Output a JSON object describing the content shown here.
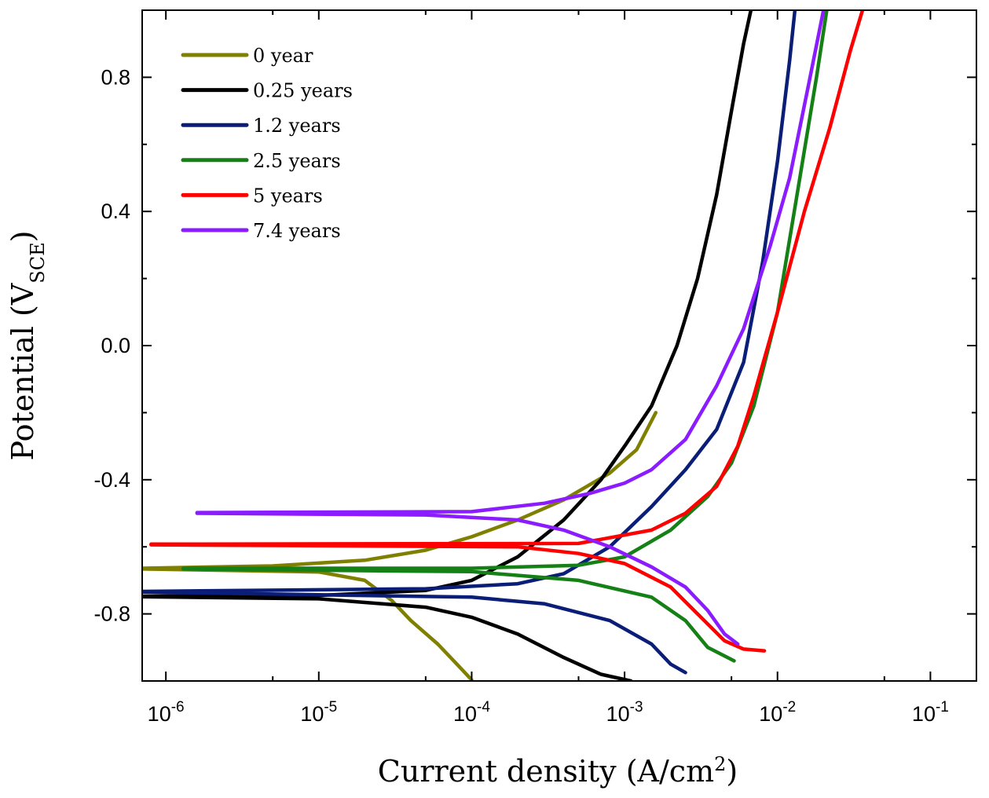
{
  "chart_data": {
    "type": "line",
    "title": "",
    "xlabel": "Current density (A/cm",
    "xlabel_sup": "2",
    "xlabel_end": ")",
    "ylabel": "Potential (V",
    "ylabel_sub": "SCE",
    "ylabel_end": ")",
    "xscale": "log",
    "xlim": [
      7e-07,
      0.2
    ],
    "ylim": [
      -1.0,
      1.0
    ],
    "x_ticks": [
      {
        "value": 1e-06,
        "base": "10",
        "exp": "-6"
      },
      {
        "value": 1e-05,
        "base": "10",
        "exp": "-5"
      },
      {
        "value": 0.0001,
        "base": "10",
        "exp": "-4"
      },
      {
        "value": 0.001,
        "base": "10",
        "exp": "-3"
      },
      {
        "value": 0.01,
        "base": "10",
        "exp": "-2"
      },
      {
        "value": 0.1,
        "base": "10",
        "exp": "-1"
      }
    ],
    "y_ticks": [
      {
        "value": 0.8,
        "label": "0.8"
      },
      {
        "value": 0.4,
        "label": "0.4"
      },
      {
        "value": 0.0,
        "label": "0.0"
      },
      {
        "value": -0.4,
        "label": "-0.4"
      },
      {
        "value": -0.8,
        "label": "-0.8"
      }
    ],
    "grid": false,
    "legend_position": "top-left",
    "series": [
      {
        "name": "0 year",
        "color": "#808000",
        "anodic": [
          [
            7e-07,
            -0.664
          ],
          [
            5e-06,
            -0.657
          ],
          [
            2e-05,
            -0.64
          ],
          [
            5e-05,
            -0.61
          ],
          [
            0.0001,
            -0.57
          ],
          [
            0.0002,
            -0.52
          ],
          [
            0.0004,
            -0.46
          ],
          [
            0.0008,
            -0.38
          ],
          [
            0.0012,
            -0.31
          ],
          [
            0.0016,
            -0.2
          ]
        ],
        "cathodic": [
          [
            7e-07,
            -0.666
          ],
          [
            1e-05,
            -0.675
          ],
          [
            2e-05,
            -0.7
          ],
          [
            3e-05,
            -0.76
          ],
          [
            4e-05,
            -0.82
          ],
          [
            6e-05,
            -0.89
          ],
          [
            8e-05,
            -0.95
          ],
          [
            0.0001,
            -0.997
          ]
        ]
      },
      {
        "name": "0.25 years",
        "color": "#000000",
        "anodic": [
          [
            7e-07,
            -0.747
          ],
          [
            1e-05,
            -0.745
          ],
          [
            5e-05,
            -0.73
          ],
          [
            0.0001,
            -0.7
          ],
          [
            0.0002,
            -0.63
          ],
          [
            0.0004,
            -0.52
          ],
          [
            0.0007,
            -0.4
          ],
          [
            0.001,
            -0.3
          ],
          [
            0.0015,
            -0.18
          ],
          [
            0.0022,
            0.0
          ],
          [
            0.003,
            0.2
          ],
          [
            0.004,
            0.45
          ],
          [
            0.005,
            0.7
          ],
          [
            0.006,
            0.9
          ],
          [
            0.0067,
            1.0
          ]
        ],
        "cathodic": [
          [
            7e-07,
            -0.749
          ],
          [
            1e-05,
            -0.755
          ],
          [
            5e-05,
            -0.78
          ],
          [
            0.0001,
            -0.81
          ],
          [
            0.0002,
            -0.86
          ],
          [
            0.0004,
            -0.93
          ],
          [
            0.0007,
            -0.98
          ],
          [
            0.0011,
            -1.0
          ]
        ]
      },
      {
        "name": "1.2 years",
        "color": "#0a1e78",
        "anodic": [
          [
            7e-07,
            -0.733
          ],
          [
            5e-05,
            -0.725
          ],
          [
            0.0002,
            -0.71
          ],
          [
            0.0004,
            -0.68
          ],
          [
            0.0008,
            -0.6
          ],
          [
            0.0015,
            -0.48
          ],
          [
            0.0025,
            -0.37
          ],
          [
            0.004,
            -0.25
          ],
          [
            0.006,
            -0.05
          ],
          [
            0.008,
            0.25
          ],
          [
            0.01,
            0.55
          ],
          [
            0.012,
            0.85
          ],
          [
            0.013,
            1.0
          ]
        ],
        "cathodic": [
          [
            7e-07,
            -0.735
          ],
          [
            0.0001,
            -0.75
          ],
          [
            0.0003,
            -0.77
          ],
          [
            0.0008,
            -0.82
          ],
          [
            0.0015,
            -0.89
          ],
          [
            0.002,
            -0.95
          ],
          [
            0.0025,
            -0.975
          ]
        ]
      },
      {
        "name": "2.5 years",
        "color": "#158015",
        "anodic": [
          [
            1.3e-06,
            -0.664
          ],
          [
            0.0001,
            -0.664
          ],
          [
            0.0005,
            -0.655
          ],
          [
            0.001,
            -0.63
          ],
          [
            0.002,
            -0.55
          ],
          [
            0.0035,
            -0.45
          ],
          [
            0.005,
            -0.35
          ],
          [
            0.007,
            -0.18
          ],
          [
            0.01,
            0.1
          ],
          [
            0.014,
            0.5
          ],
          [
            0.018,
            0.8
          ],
          [
            0.021,
            1.0
          ]
        ],
        "cathodic": [
          [
            1.3e-06,
            -0.666
          ],
          [
            0.0001,
            -0.674
          ],
          [
            0.0005,
            -0.7
          ],
          [
            0.0015,
            -0.75
          ],
          [
            0.0025,
            -0.82
          ],
          [
            0.0035,
            -0.9
          ],
          [
            0.0052,
            -0.94
          ]
        ]
      },
      {
        "name": "5 years",
        "color": "#ff0000",
        "anodic": [
          [
            8e-07,
            -0.592
          ],
          [
            0.0005,
            -0.59
          ],
          [
            0.0015,
            -0.55
          ],
          [
            0.0025,
            -0.5
          ],
          [
            0.004,
            -0.42
          ],
          [
            0.0055,
            -0.3
          ],
          [
            0.007,
            -0.15
          ],
          [
            0.01,
            0.1
          ],
          [
            0.015,
            0.4
          ],
          [
            0.022,
            0.65
          ],
          [
            0.03,
            0.88
          ],
          [
            0.036,
            1.0
          ]
        ],
        "cathodic": [
          [
            8e-07,
            -0.594
          ],
          [
            0.0002,
            -0.6
          ],
          [
            0.0005,
            -0.62
          ],
          [
            0.001,
            -0.65
          ],
          [
            0.002,
            -0.72
          ],
          [
            0.003,
            -0.8
          ],
          [
            0.0045,
            -0.88
          ],
          [
            0.006,
            -0.905
          ],
          [
            0.0082,
            -0.91
          ]
        ]
      },
      {
        "name": "7.4 years",
        "color": "#8a1cff",
        "anodic": [
          [
            1.6e-06,
            -0.498
          ],
          [
            0.0001,
            -0.495
          ],
          [
            0.0003,
            -0.47
          ],
          [
            0.0006,
            -0.44
          ],
          [
            0.001,
            -0.41
          ],
          [
            0.0015,
            -0.37
          ],
          [
            0.0025,
            -0.28
          ],
          [
            0.004,
            -0.12
          ],
          [
            0.006,
            0.05
          ],
          [
            0.009,
            0.3
          ],
          [
            0.012,
            0.5
          ],
          [
            0.016,
            0.78
          ],
          [
            0.02,
            1.0
          ]
        ],
        "cathodic": [
          [
            1.6e-06,
            -0.5
          ],
          [
            5e-05,
            -0.505
          ],
          [
            0.0002,
            -0.52
          ],
          [
            0.0004,
            -0.55
          ],
          [
            0.0008,
            -0.6
          ],
          [
            0.0015,
            -0.66
          ],
          [
            0.0025,
            -0.72
          ],
          [
            0.0035,
            -0.79
          ],
          [
            0.0045,
            -0.86
          ],
          [
            0.0055,
            -0.89
          ]
        ]
      }
    ]
  }
}
